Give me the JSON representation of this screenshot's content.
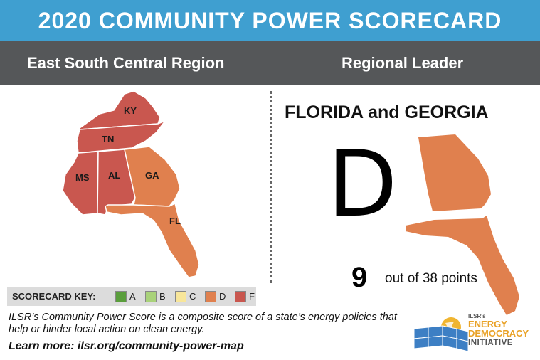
{
  "header": {
    "title": "2020 COMMUNITY POWER SCORECARD",
    "region": "East South Central Region",
    "leader_heading": "Regional Leader"
  },
  "map": {
    "states": [
      {
        "abbr": "KY",
        "grade": "F"
      },
      {
        "abbr": "TN",
        "grade": "F"
      },
      {
        "abbr": "MS",
        "grade": "F"
      },
      {
        "abbr": "AL",
        "grade": "F"
      },
      {
        "abbr": "GA",
        "grade": "D"
      },
      {
        "abbr": "FL",
        "grade": "D"
      }
    ]
  },
  "leader": {
    "name": "FLORIDA and GEORGIA",
    "grade": "D",
    "points": "9",
    "points_text": "out of 38 points",
    "color": "#e0804e"
  },
  "key": {
    "title": "SCORECARD KEY:",
    "items": [
      {
        "letter": "A",
        "color": "#5a9e3c"
      },
      {
        "letter": "B",
        "color": "#a9d27a"
      },
      {
        "letter": "C",
        "color": "#f8e69a"
      },
      {
        "letter": "D",
        "color": "#e0804e"
      },
      {
        "letter": "F",
        "color": "#c9574f"
      }
    ]
  },
  "footer": {
    "description": "ILSR’s Community Power Score is a composite score of a state’s energy policies that help or hinder local action on clean energy.",
    "learn_more": "Learn more: ilsr.org/community-power-map"
  },
  "logo": {
    "small": "ILSR's",
    "line1": "ENERGY",
    "line2": "DEMOCRACY",
    "line3": "INITIATIVE"
  }
}
